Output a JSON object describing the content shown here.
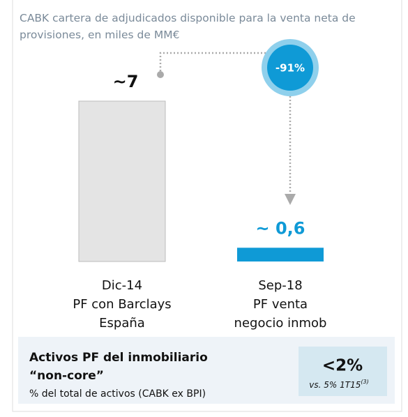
{
  "chart_data": {
    "type": "bar",
    "title": "CABK cartera de adjudicados disponible para la venta neta de provisiones, en miles de MM€",
    "categories": [
      [
        "Dic-14",
        "PF con Barclays",
        "España"
      ],
      [
        "Sep-18",
        "PF venta",
        "negocio inmob"
      ]
    ],
    "values": [
      7,
      0.6
    ],
    "value_labels": [
      "~7",
      "~ 0,6"
    ],
    "colors": [
      "#e4e4e4",
      "#0f9ad6"
    ],
    "label_colors": [
      "#111111",
      "#0f9ad6"
    ],
    "ylim": [
      0,
      7
    ],
    "annotation": "-91%"
  },
  "box": {
    "title": [
      "Activos PF del inmobiliario",
      "“non-core”"
    ],
    "subtitle": "% del total de activos (CABK ex BPI)",
    "value": "<2%",
    "note": "vs. 5% 1T15",
    "note_ref": "(3)"
  }
}
